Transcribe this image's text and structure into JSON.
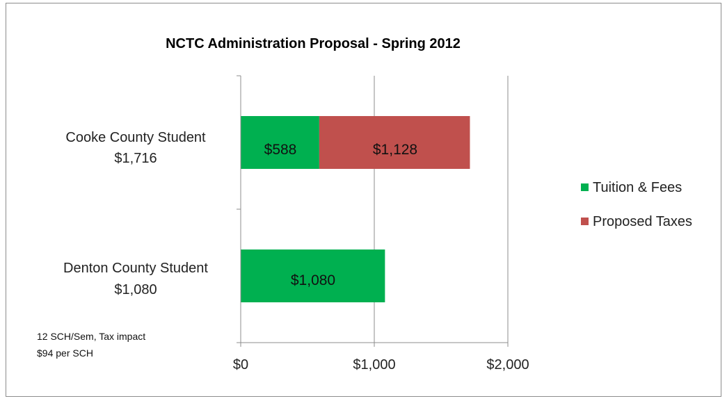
{
  "chart_data": {
    "type": "bar",
    "orientation": "horizontal",
    "stacked": true,
    "title": "NCTC Administration Proposal  - Spring 2012",
    "categories": [
      [
        "Cooke County Student",
        "$1,716"
      ],
      [
        "Denton County Student",
        "$1,080"
      ]
    ],
    "series": [
      {
        "name": "Tuition & Fees",
        "color": "#00b050",
        "values": [
          588,
          1080
        ],
        "labels": [
          "$588",
          "$1,080"
        ]
      },
      {
        "name": "Proposed Taxes",
        "color": "#c0504d",
        "values": [
          1128,
          0
        ],
        "labels": [
          "$1,128",
          ""
        ]
      }
    ],
    "xlim": [
      0,
      2000
    ],
    "xticks": [
      0,
      1000,
      2000
    ],
    "xtick_labels": [
      "$0",
      "$1,000",
      "$2,000"
    ],
    "grid": true,
    "legend_position": "right",
    "annotation": [
      "12 SCH/Sem, Tax impact",
      "$94 per SCH"
    ]
  }
}
